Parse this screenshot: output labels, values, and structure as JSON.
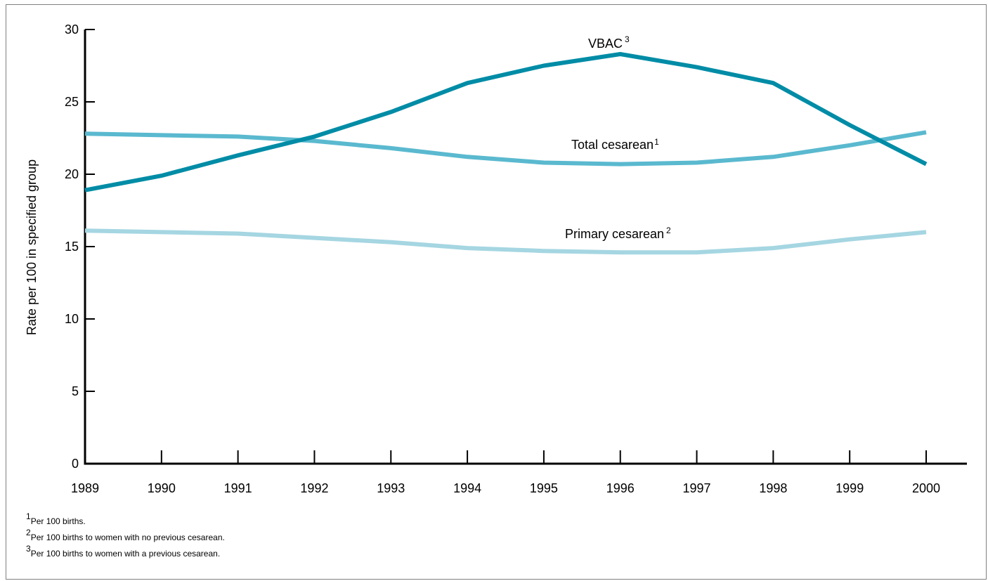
{
  "chart_data": {
    "type": "line",
    "ylabel": "Rate per 100 in specified group",
    "xlabel": "",
    "x": [
      "1989",
      "1990",
      "1991",
      "1992",
      "1993",
      "1994",
      "1995",
      "1996",
      "1997",
      "1998",
      "1999",
      "2000"
    ],
    "ylim": [
      0,
      30
    ],
    "yticks": [
      0,
      5,
      10,
      15,
      20,
      25,
      30
    ],
    "grid": false,
    "series": [
      {
        "name": "VBAC",
        "footnote_ref": "3",
        "color": "#008ca6",
        "values": [
          18.9,
          19.9,
          21.3,
          22.6,
          24.3,
          26.3,
          27.5,
          28.3,
          27.4,
          26.3,
          23.4,
          20.7
        ]
      },
      {
        "name": "Total cesarean",
        "footnote_ref": "1",
        "color": "#5ab9cf",
        "values": [
          22.8,
          22.7,
          22.6,
          22.3,
          21.8,
          21.2,
          20.8,
          20.7,
          20.8,
          21.2,
          22.0,
          22.9
        ]
      },
      {
        "name": "Primary cesarean",
        "footnote_ref": "2",
        "color": "#a5d6e2",
        "values": [
          16.1,
          16.0,
          15.9,
          15.6,
          15.3,
          14.9,
          14.7,
          14.6,
          14.6,
          14.9,
          15.5,
          16.0
        ]
      }
    ]
  },
  "footnotes": [
    {
      "mark": "1",
      "text": "Per 100 births."
    },
    {
      "mark": "2",
      "text": "Per 100 births to women with no previous cesarean."
    },
    {
      "mark": "3",
      "text": "Per 100 births to women with a previous cesarean."
    }
  ]
}
